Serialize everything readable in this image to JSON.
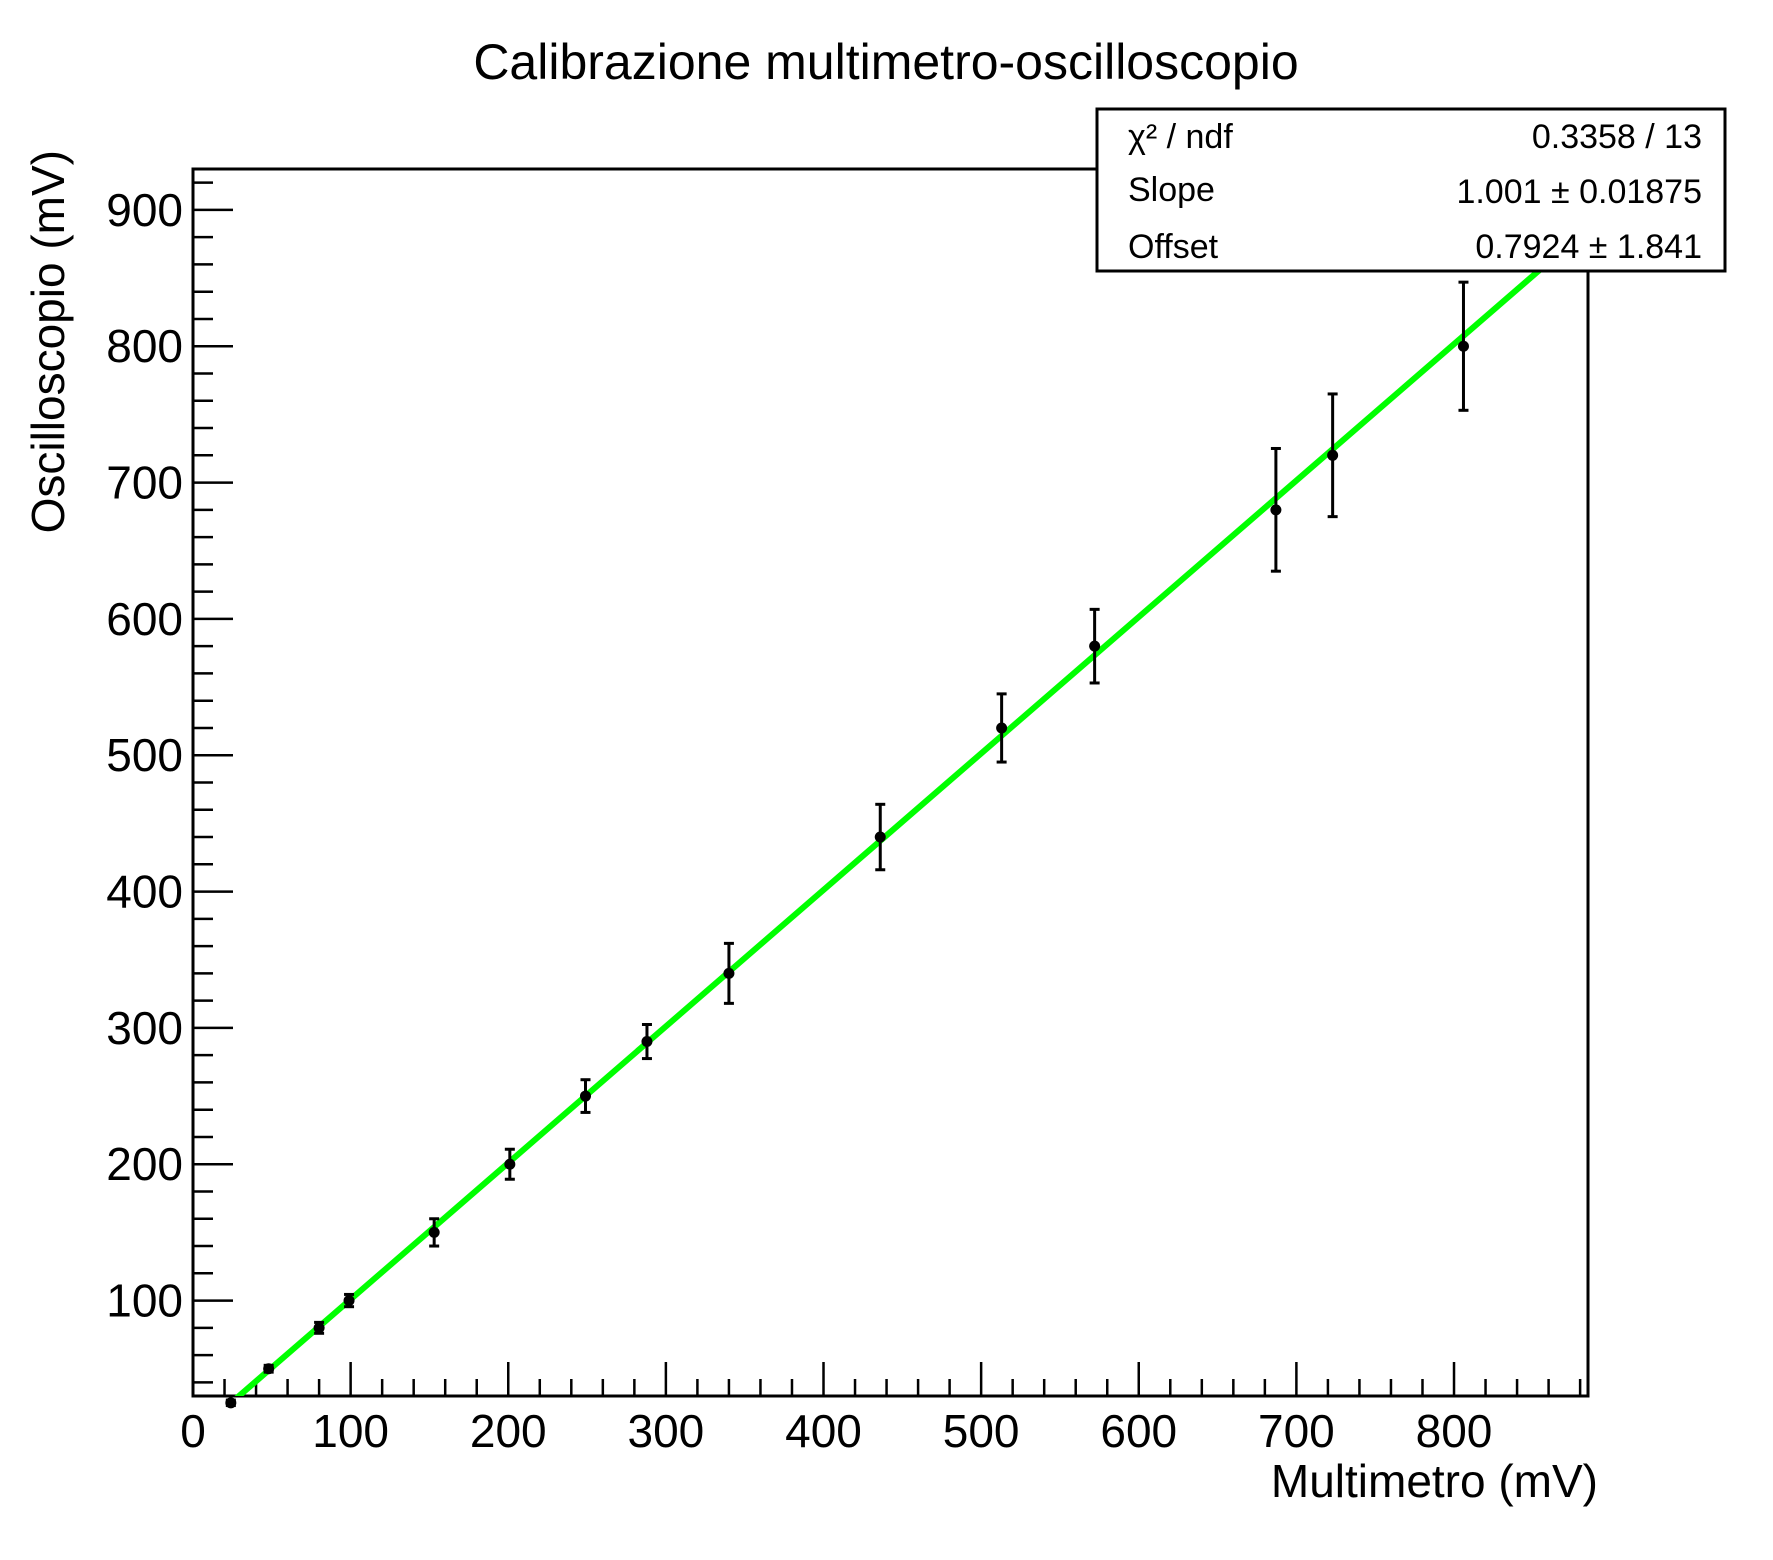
{
  "chart_data": {
    "type": "scatter",
    "title": "Calibrazione multimetro-oscilloscopio",
    "xlabel": "Multimetro (mV)",
    "ylabel": "Oscilloscopio (mV)",
    "xlim": [
      0,
      885
    ],
    "ylim": [
      30,
      930
    ],
    "x_ticks": [
      0,
      100,
      200,
      300,
      400,
      500,
      600,
      700,
      800
    ],
    "y_ticks": [
      100,
      200,
      300,
      400,
      500,
      600,
      700,
      800,
      900
    ],
    "grid": false,
    "series": [
      {
        "x": [
          24,
          48,
          80,
          99,
          153,
          201,
          249,
          288,
          340,
          436,
          513,
          572,
          687,
          723,
          806
        ],
        "y": [
          25,
          50,
          80,
          100,
          150,
          200,
          250,
          290,
          340,
          440,
          520,
          580,
          680,
          720,
          800
        ],
        "y_err": [
          2,
          2.5,
          4,
          4.5,
          10,
          11,
          12,
          12.5,
          22,
          24,
          25,
          27,
          45,
          45,
          47
        ],
        "color": "#000000"
      }
    ],
    "fit": {
      "slope": 1.001,
      "offset": 0.7924,
      "color": "#00ff00"
    },
    "stats_box": {
      "rows": [
        {
          "label": "χ² / ndf",
          "value": "0.3358 / 13"
        },
        {
          "label": "Slope",
          "value": "1.001 ± 0.01875"
        },
        {
          "label": "Offset",
          "value": "0.7924 ± 1.841"
        }
      ]
    }
  }
}
